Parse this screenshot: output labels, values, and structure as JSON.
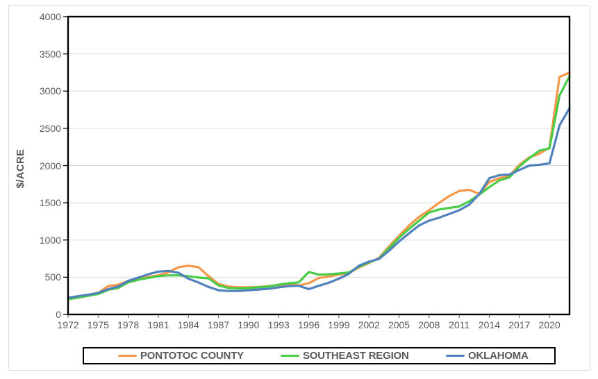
{
  "chart_data": {
    "type": "line",
    "title": "",
    "xlabel": "",
    "ylabel": "$/ACRE",
    "ylim": [
      0,
      4000
    ],
    "xlim": [
      1972,
      2022
    ],
    "yticks": [
      0,
      500,
      1000,
      1500,
      2000,
      2500,
      3000,
      3500,
      4000
    ],
    "xticks": [
      1972,
      1975,
      1978,
      1981,
      1984,
      1987,
      1990,
      1993,
      1996,
      1999,
      2002,
      2005,
      2008,
      2011,
      2014,
      2017,
      2020
    ],
    "grid": "horizontal",
    "legend_position": "bottom",
    "x": [
      1972,
      1973,
      1974,
      1975,
      1976,
      1977,
      1978,
      1979,
      1980,
      1981,
      1982,
      1983,
      1984,
      1985,
      1986,
      1987,
      1988,
      1989,
      1990,
      1991,
      1992,
      1993,
      1994,
      1995,
      1996,
      1997,
      1998,
      1999,
      2000,
      2001,
      2002,
      2003,
      2004,
      2005,
      2006,
      2007,
      2008,
      2009,
      2010,
      2011,
      2012,
      2013,
      2014,
      2015,
      2016,
      2017,
      2018,
      2019,
      2020,
      2021,
      2022
    ],
    "series": [
      {
        "name": "PONTOTOC COUNTY",
        "color": "#F79646",
        "values": [
          215,
          235,
          260,
          290,
          380,
          400,
          450,
          480,
          505,
          525,
          565,
          635,
          655,
          635,
          515,
          410,
          375,
          365,
          365,
          370,
          380,
          395,
          405,
          390,
          420,
          490,
          510,
          535,
          560,
          630,
          690,
          760,
          915,
          1055,
          1195,
          1310,
          1400,
          1500,
          1590,
          1660,
          1675,
          1620,
          1780,
          1830,
          1860,
          2010,
          2110,
          2160,
          2240,
          3190,
          3250
        ]
      },
      {
        "name": "SOUTHEAST REGION",
        "color": "#48CC48",
        "values": [
          205,
          225,
          250,
          275,
          330,
          355,
          430,
          465,
          490,
          515,
          525,
          525,
          515,
          495,
          485,
          390,
          355,
          350,
          355,
          365,
          375,
          400,
          420,
          430,
          570,
          535,
          540,
          550,
          565,
          640,
          700,
          750,
          890,
          1030,
          1150,
          1260,
          1370,
          1410,
          1430,
          1450,
          1520,
          1610,
          1710,
          1800,
          1840,
          1990,
          2100,
          2200,
          2230,
          2940,
          3200
        ]
      },
      {
        "name": "OKLAHOMA",
        "color": "#4F81BD",
        "values": [
          225,
          245,
          265,
          290,
          340,
          375,
          450,
          495,
          540,
          575,
          585,
          560,
          480,
          430,
          370,
          325,
          315,
          315,
          325,
          335,
          345,
          365,
          380,
          385,
          340,
          385,
          425,
          480,
          545,
          655,
          710,
          745,
          855,
          980,
          1090,
          1195,
          1260,
          1300,
          1350,
          1400,
          1475,
          1615,
          1830,
          1870,
          1880,
          1940,
          2000,
          2010,
          2030,
          2540,
          2770
        ]
      }
    ],
    "layout_hints": {
      "axis_text_color": "#595959",
      "gridline_color": "#D9D9D9",
      "plot_border_color": "#000000",
      "outer_border_color": "#D5DBE3",
      "x_tick_color": "#595959",
      "y_tick_color": "#000000"
    }
  }
}
